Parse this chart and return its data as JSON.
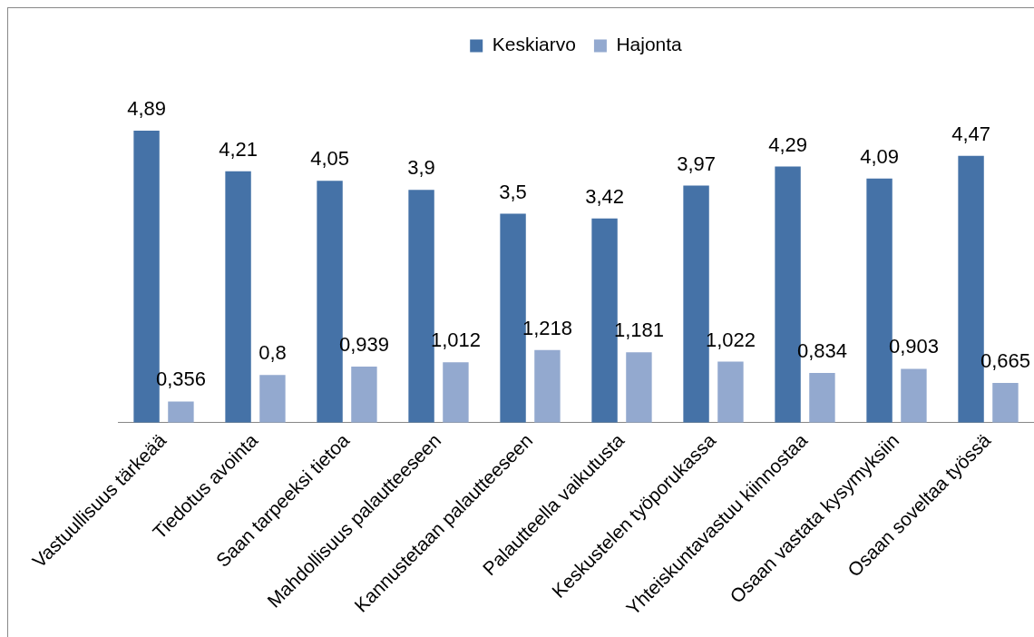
{
  "chart_data": {
    "type": "bar",
    "categories": [
      "Vastuullisuus tärkeää",
      "Tiedotus avointa",
      "Saan tarpeeksi tietoa",
      "Mahdollisuus palautteeseen",
      "Kannustetaan palautteeseen",
      "Palautteella vaikutusta",
      "Keskustelen työporukassa",
      "Yhteiskuntavastuu kiinnostaa",
      "Osaan vastata kysymyksiin",
      "Osaan soveltaa työssä"
    ],
    "series": [
      {
        "name": "Keskiarvo",
        "color": "#4572a7",
        "values": [
          4.89,
          4.21,
          4.05,
          3.9,
          3.5,
          3.42,
          3.97,
          4.29,
          4.09,
          4.47
        ],
        "value_labels": [
          "4,89",
          "4,21",
          "4,05",
          "3,9",
          "3,5",
          "3,42",
          "3,97",
          "4,29",
          "4,09",
          "4,47"
        ]
      },
      {
        "name": "Hajonta",
        "color": "#93a9cf",
        "values": [
          0.356,
          0.8,
          0.939,
          1.012,
          1.218,
          1.181,
          1.022,
          0.834,
          0.903,
          0.665
        ],
        "value_labels": [
          "0,356",
          "0,8",
          "0,939",
          "1,012",
          "1,218",
          "1,181",
          "1,022",
          "0,834",
          "0,903",
          "0,665"
        ]
      }
    ],
    "legend": "top",
    "grid": false
  }
}
